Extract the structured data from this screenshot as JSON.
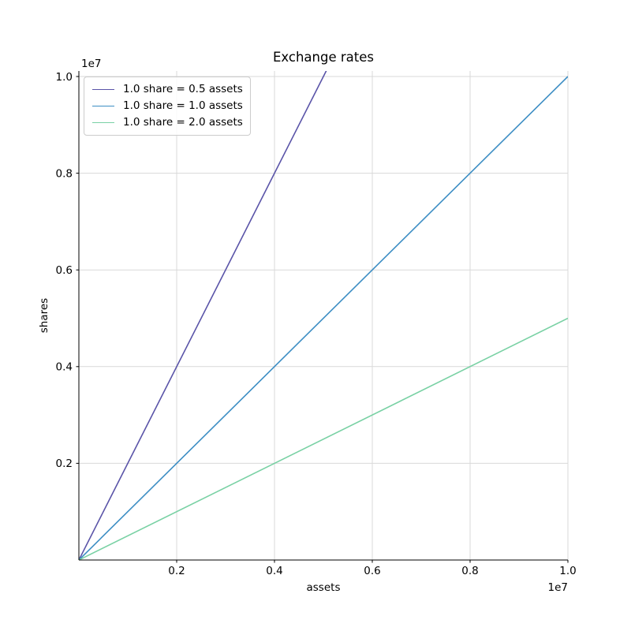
{
  "figure": {
    "background": "#ffffff"
  },
  "chart_data": {
    "type": "line",
    "title": "Exchange rates",
    "xlabel": "assets",
    "ylabel": "shares",
    "x_offset_label": "1e7",
    "y_offset_label": "1e7",
    "xlim": [
      0,
      10000000
    ],
    "ylim": [
      0,
      10000000
    ],
    "x_ticks": [
      2000000,
      4000000,
      6000000,
      8000000,
      10000000
    ],
    "x_tick_labels": [
      "0.2",
      "0.4",
      "0.6",
      "0.8",
      "1.0"
    ],
    "y_ticks": [
      2000000,
      4000000,
      6000000,
      8000000,
      10000000
    ],
    "y_tick_labels": [
      "0.2",
      "0.4",
      "0.6",
      "0.8",
      "1.0"
    ],
    "grid": true,
    "legend_position": "upper left",
    "colors": {
      "grid": "#d9d9d9",
      "spine": "#000000",
      "text": "#000000"
    },
    "series": [
      {
        "label": "1.0 share = 0.5 assets",
        "color": "#5a54a8",
        "slope": 2.0,
        "x": [
          0,
          10000000
        ],
        "y": [
          0,
          20000000
        ]
      },
      {
        "label": "1.0 share = 1.0 assets",
        "color": "#3d8ec4",
        "slope": 1.0,
        "x": [
          0,
          10000000
        ],
        "y": [
          0,
          10000000
        ]
      },
      {
        "label": "1.0 share = 2.0 assets",
        "color": "#79d1a4",
        "slope": 0.5,
        "x": [
          0,
          10000000
        ],
        "y": [
          0,
          5000000
        ]
      }
    ]
  }
}
